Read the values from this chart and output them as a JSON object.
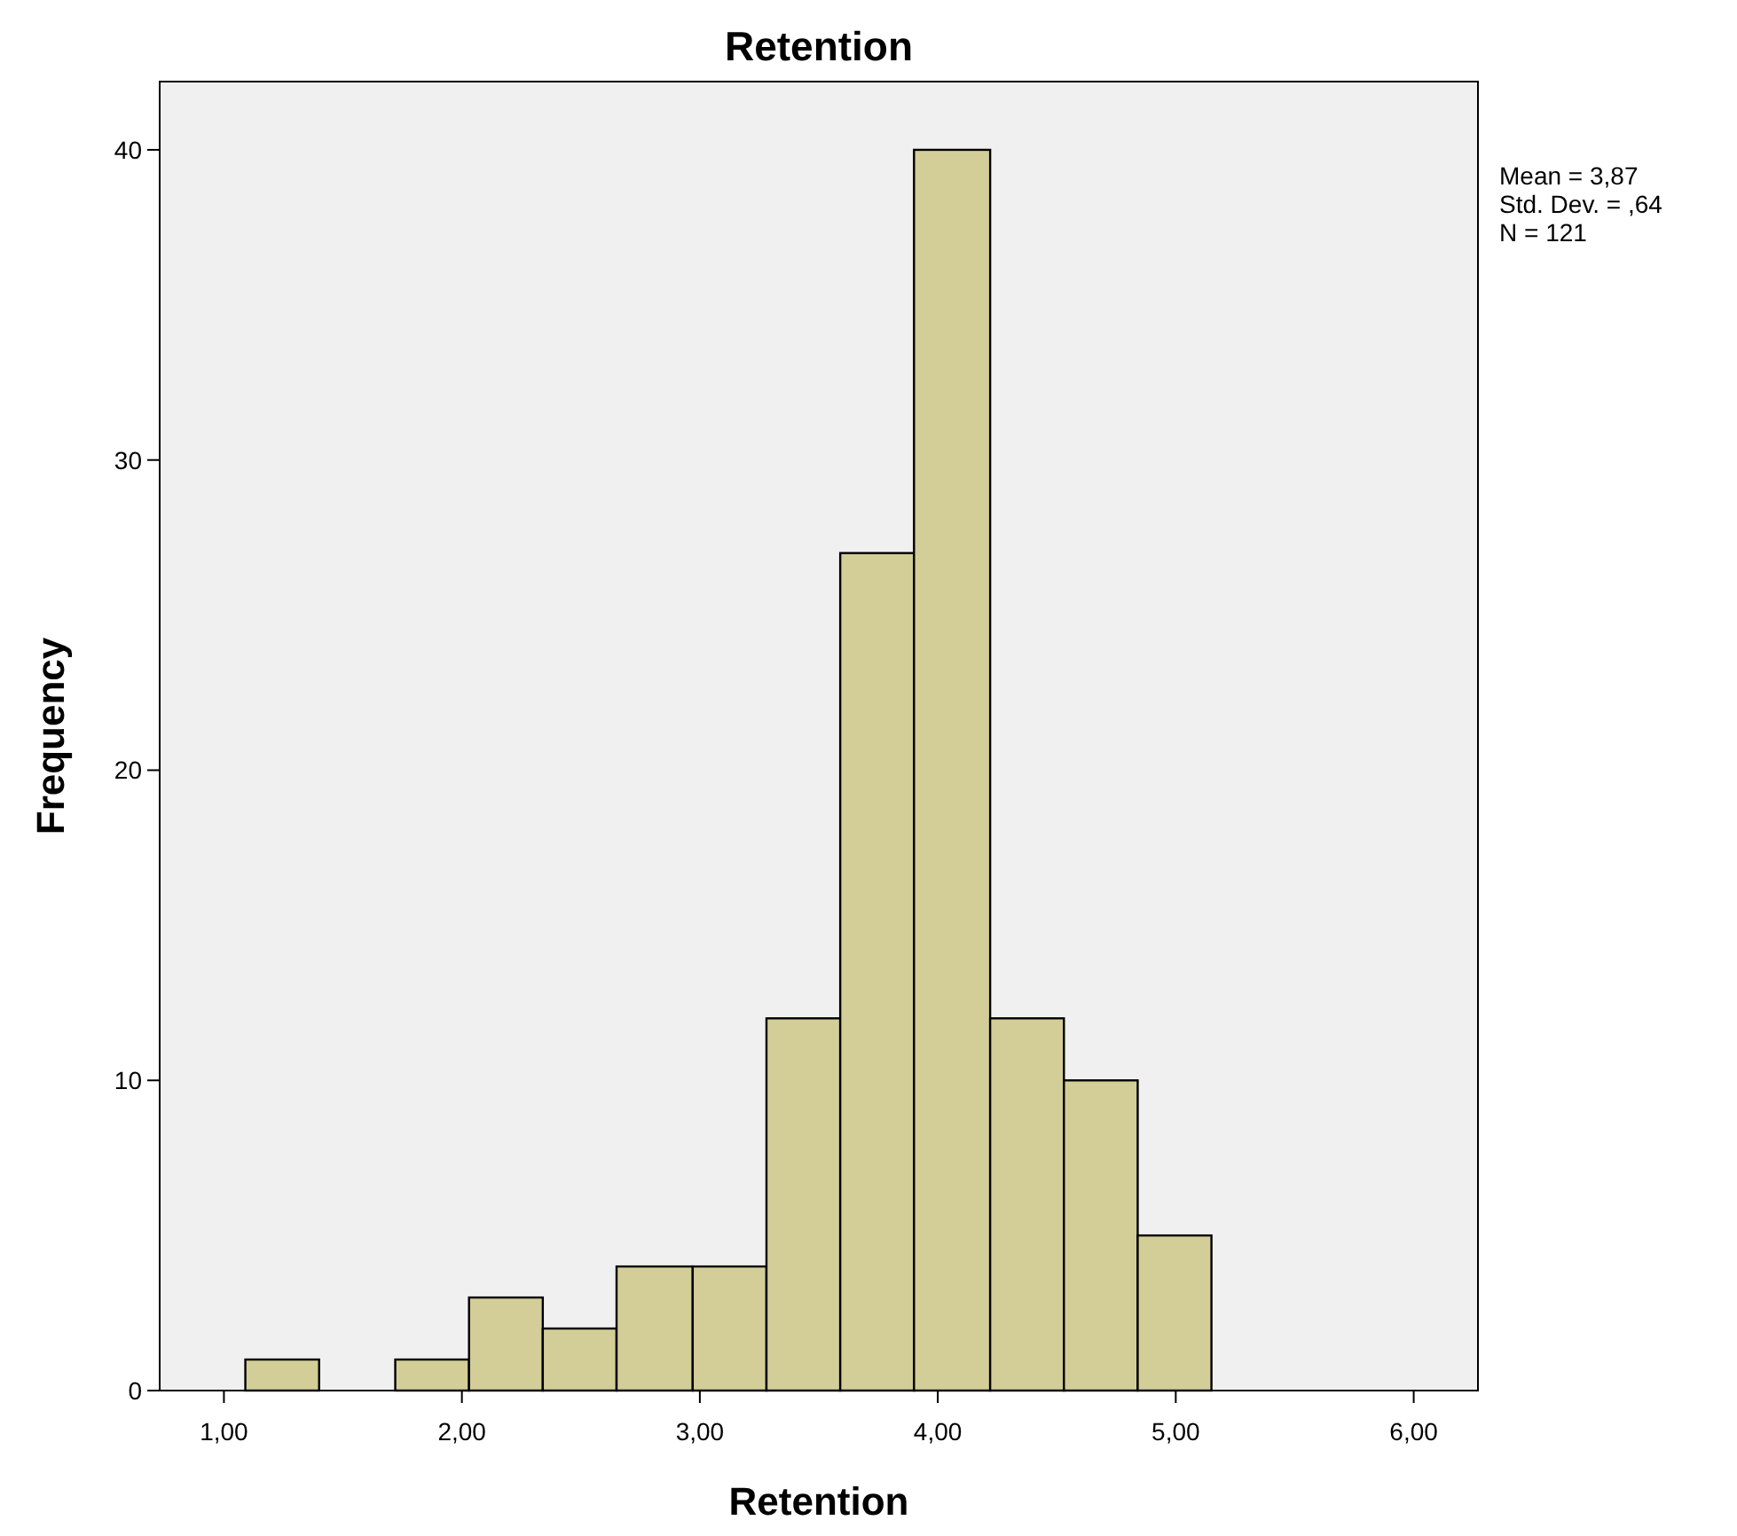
{
  "chart_data": {
    "type": "histogram",
    "title": "Retention",
    "xlabel": "Retention",
    "ylabel": "Frequency",
    "bins": [
      1.09,
      1.4,
      1.72,
      2.03,
      2.34,
      2.65,
      2.97,
      3.28,
      3.59,
      3.9,
      4.22,
      4.53,
      4.84,
      5.15
    ],
    "values": [
      1,
      0,
      1,
      3,
      2,
      4,
      4,
      12,
      27,
      40,
      12,
      10,
      5
    ],
    "color": "#d3ce97",
    "xlim": [
      0.73,
      6.27
    ],
    "xticks": [
      {
        "value": 1,
        "label": "1,00"
      },
      {
        "value": 2,
        "label": "2,00"
      },
      {
        "value": 3,
        "label": "3,00"
      },
      {
        "value": 4,
        "label": "4,00"
      },
      {
        "value": 5,
        "label": "5,00"
      },
      {
        "value": 6,
        "label": "6,00"
      }
    ],
    "ylim": [
      0,
      42.2
    ],
    "yticks": [
      0,
      10,
      20,
      30,
      40
    ],
    "grid": false,
    "annotations": [
      "Mean = 3,87",
      "Std. Dev. = ,64",
      "N = 121"
    ]
  }
}
